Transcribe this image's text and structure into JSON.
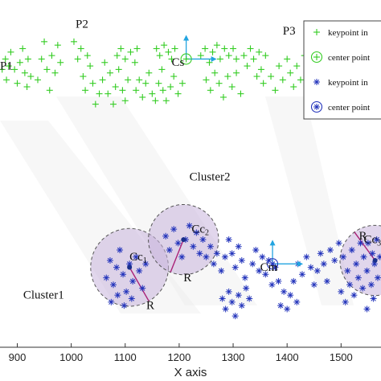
{
  "chart_data": {
    "type": "scatter",
    "xlabel": "X axis",
    "xlim": [
      868,
      1574
    ],
    "ylim": [
      0,
      100
    ],
    "x_ticks": [
      900,
      1000,
      1100,
      1200,
      1300,
      1400,
      1500
    ],
    "grid": false,
    "legend_position": "top-right",
    "colors": {
      "green": "#33cc22",
      "blue": "#2233bb",
      "cyan": "#22a4e0",
      "cluster_fill": "#c8b4dc",
      "radius": "#aa2277"
    },
    "legend": [
      {
        "label": "keypoint in",
        "marker": "plus",
        "color": "#33cc22"
      },
      {
        "label": "center point",
        "marker": "circle-plus",
        "color": "#33cc22"
      },
      {
        "label": "keypoint in",
        "marker": "asterisk",
        "color": "#2233bb"
      },
      {
        "label": "center point",
        "marker": "circle-asterisk",
        "color": "#2233bb"
      }
    ],
    "series": [
      {
        "marker": "plus",
        "color": "#33cc22",
        "points": [
          [
            872,
            80
          ],
          [
            878,
            83
          ],
          [
            880,
            77
          ],
          [
            884,
            81
          ],
          [
            888,
            85
          ],
          [
            895,
            80
          ],
          [
            900,
            76
          ],
          [
            905,
            82
          ],
          [
            910,
            86
          ],
          [
            914,
            79
          ],
          [
            918,
            75
          ],
          [
            920,
            83
          ],
          [
            925,
            78
          ],
          [
            938,
            77
          ],
          [
            945,
            83
          ],
          [
            950,
            88
          ],
          [
            955,
            80
          ],
          [
            960,
            74
          ],
          [
            964,
            84
          ],
          [
            970,
            79
          ],
          [
            975,
            87
          ],
          [
            980,
            82
          ],
          [
            1005,
            88
          ],
          [
            1012,
            83
          ],
          [
            1018,
            86
          ],
          [
            1022,
            78
          ],
          [
            1026,
            74
          ],
          [
            1030,
            84
          ],
          [
            1035,
            81
          ],
          [
            1040,
            76
          ],
          [
            1045,
            70
          ],
          [
            1052,
            73
          ],
          [
            1058,
            77
          ],
          [
            1062,
            82
          ],
          [
            1068,
            73
          ],
          [
            1072,
            79
          ],
          [
            1078,
            70
          ],
          [
            1082,
            75
          ],
          [
            1088,
            80
          ],
          [
            1095,
            74
          ],
          [
            1100,
            71
          ],
          [
            1105,
            77
          ],
          [
            1085,
            84
          ],
          [
            1092,
            86
          ],
          [
            1100,
            83
          ],
          [
            1110,
            85
          ],
          [
            1118,
            82
          ],
          [
            1122,
            86
          ],
          [
            1120,
            74
          ],
          [
            1126,
            77
          ],
          [
            1132,
            72
          ],
          [
            1138,
            76
          ],
          [
            1144,
            79
          ],
          [
            1150,
            73
          ],
          [
            1156,
            71
          ],
          [
            1162,
            76
          ],
          [
            1168,
            80
          ],
          [
            1158,
            86
          ],
          [
            1164,
            84
          ],
          [
            1172,
            87
          ],
          [
            1180,
            85
          ],
          [
            1186,
            83
          ],
          [
            1192,
            86
          ],
          [
            1170,
            74
          ],
          [
            1176,
            71
          ],
          [
            1184,
            75
          ],
          [
            1190,
            78
          ],
          [
            1198,
            73
          ],
          [
            1206,
            76
          ],
          [
            1240,
            84
          ],
          [
            1248,
            86
          ],
          [
            1256,
            82
          ],
          [
            1262,
            85
          ],
          [
            1270,
            87
          ],
          [
            1276,
            83
          ],
          [
            1284,
            86
          ],
          [
            1292,
            84
          ],
          [
            1300,
            86
          ],
          [
            1306,
            83
          ],
          [
            1250,
            77
          ],
          [
            1258,
            74
          ],
          [
            1266,
            79
          ],
          [
            1274,
            76
          ],
          [
            1282,
            72
          ],
          [
            1290,
            78
          ],
          [
            1298,
            75
          ],
          [
            1306,
            79
          ],
          [
            1314,
            73
          ],
          [
            1320,
            84
          ],
          [
            1326,
            81
          ],
          [
            1332,
            86
          ],
          [
            1338,
            83
          ],
          [
            1344,
            78
          ],
          [
            1348,
            85
          ],
          [
            1352,
            80
          ],
          [
            1356,
            76
          ],
          [
            1360,
            84
          ],
          [
            1370,
            78
          ],
          [
            1378,
            74
          ],
          [
            1385,
            81
          ],
          [
            1392,
            77
          ],
          [
            1400,
            83
          ],
          [
            1406,
            79
          ],
          [
            1412,
            75
          ],
          [
            1418,
            81
          ],
          [
            1425,
            77
          ],
          [
            1432,
            84
          ]
        ]
      },
      {
        "marker": "asterisk",
        "color": "#2233bb",
        "points": [
          [
            1065,
            20
          ],
          [
            1072,
            25
          ],
          [
            1078,
            18
          ],
          [
            1084,
            23
          ],
          [
            1090,
            28
          ],
          [
            1096,
            21
          ],
          [
            1102,
            16
          ],
          [
            1108,
            24
          ],
          [
            1114,
            19
          ],
          [
            1120,
            26
          ],
          [
            1126,
            22
          ],
          [
            1132,
            17
          ],
          [
            1138,
            24
          ],
          [
            1074,
            13
          ],
          [
            1086,
            15
          ],
          [
            1098,
            12
          ],
          [
            1112,
            14
          ],
          [
            1175,
            32
          ],
          [
            1182,
            28
          ],
          [
            1190,
            34
          ],
          [
            1198,
            30
          ],
          [
            1205,
            26
          ],
          [
            1212,
            31
          ],
          [
            1219,
            35
          ],
          [
            1226,
            29
          ],
          [
            1232,
            33
          ],
          [
            1238,
            27
          ],
          [
            1244,
            31
          ],
          [
            1250,
            26
          ],
          [
            1258,
            29
          ],
          [
            1264,
            24
          ],
          [
            1270,
            27
          ],
          [
            1278,
            22
          ],
          [
            1285,
            26
          ],
          [
            1292,
            31
          ],
          [
            1298,
            27
          ],
          [
            1304,
            23
          ],
          [
            1310,
            29
          ],
          [
            1316,
            25
          ],
          [
            1322,
            20
          ],
          [
            1280,
            14
          ],
          [
            1286,
            11
          ],
          [
            1292,
            16
          ],
          [
            1298,
            13
          ],
          [
            1304,
            9
          ],
          [
            1310,
            15
          ],
          [
            1316,
            12
          ],
          [
            1324,
            17
          ],
          [
            1330,
            14
          ],
          [
            1336,
            24
          ],
          [
            1342,
            28
          ],
          [
            1348,
            22
          ],
          [
            1354,
            26
          ],
          [
            1360,
            21
          ],
          [
            1366,
            25
          ],
          [
            1372,
            18
          ],
          [
            1378,
            23
          ],
          [
            1384,
            19
          ],
          [
            1388,
            12
          ],
          [
            1394,
            16
          ],
          [
            1400,
            11
          ],
          [
            1406,
            15
          ],
          [
            1412,
            19
          ],
          [
            1418,
            13
          ],
          [
            1420,
            24
          ],
          [
            1428,
            21
          ],
          [
            1436,
            26
          ],
          [
            1444,
            23
          ],
          [
            1450,
            18
          ],
          [
            1456,
            22
          ],
          [
            1462,
            27
          ],
          [
            1468,
            24
          ],
          [
            1474,
            19
          ],
          [
            1480,
            28
          ],
          [
            1488,
            25
          ],
          [
            1496,
            30
          ],
          [
            1504,
            26
          ],
          [
            1512,
            22
          ],
          [
            1520,
            28
          ],
          [
            1528,
            24
          ],
          [
            1536,
            30
          ],
          [
            1542,
            26
          ],
          [
            1500,
            16
          ],
          [
            1508,
            13
          ],
          [
            1516,
            18
          ],
          [
            1524,
            15
          ],
          [
            1532,
            20
          ],
          [
            1540,
            17
          ],
          [
            1548,
            22
          ],
          [
            1556,
            18
          ],
          [
            1562,
            24
          ],
          [
            1568,
            20
          ],
          [
            1572,
            26
          ],
          [
            1550,
            30
          ],
          [
            1558,
            27
          ],
          [
            1566,
            31
          ],
          [
            1548,
            11
          ],
          [
            1560,
            14
          ]
        ]
      }
    ],
    "center_points": [
      {
        "x": 1213,
        "y": 83,
        "marker": "circle-plus",
        "color": "#33cc22"
      },
      {
        "x": 1373,
        "y": 24,
        "marker": "circle-asterisk",
        "color": "#2233bb"
      }
    ],
    "clusters": [
      {
        "center": [
          1108,
          23
        ],
        "radius": 72,
        "centroid_color": "#1a2f8a"
      },
      {
        "center": [
          1208,
          31
        ],
        "radius": 65,
        "centroid_color": "#1a2f8a"
      },
      {
        "center": [
          1563,
          25
        ],
        "radius": 65,
        "centroid_color": "#1a2f8a"
      }
    ],
    "annotations": [
      {
        "text": "P1",
        "x": 868,
        "y": 80
      },
      {
        "text": "P2",
        "x": 1008,
        "y": 92
      },
      {
        "text": "P3",
        "x": 1392,
        "y": 90
      },
      {
        "text": "Cs",
        "x": 1186,
        "y": 81
      },
      {
        "text": "Cm",
        "x": 1350,
        "y": 22
      },
      {
        "text": "Cluster1",
        "x": 911,
        "y": 14
      },
      {
        "text": "Cluster2",
        "x": 1219,
        "y": 48
      },
      {
        "text": "Cc",
        "sub": "1",
        "x": 1108,
        "y": 25
      },
      {
        "text": "Cc",
        "sub": "2",
        "x": 1223,
        "y": 33
      },
      {
        "text": "Cc",
        "sub": "3",
        "x": 1542,
        "y": 30
      },
      {
        "text": "R",
        "x": 1139,
        "y": 11
      },
      {
        "text": "R",
        "x": 1208,
        "y": 19
      },
      {
        "text": "R",
        "x": 1533,
        "y": 31
      }
    ]
  }
}
